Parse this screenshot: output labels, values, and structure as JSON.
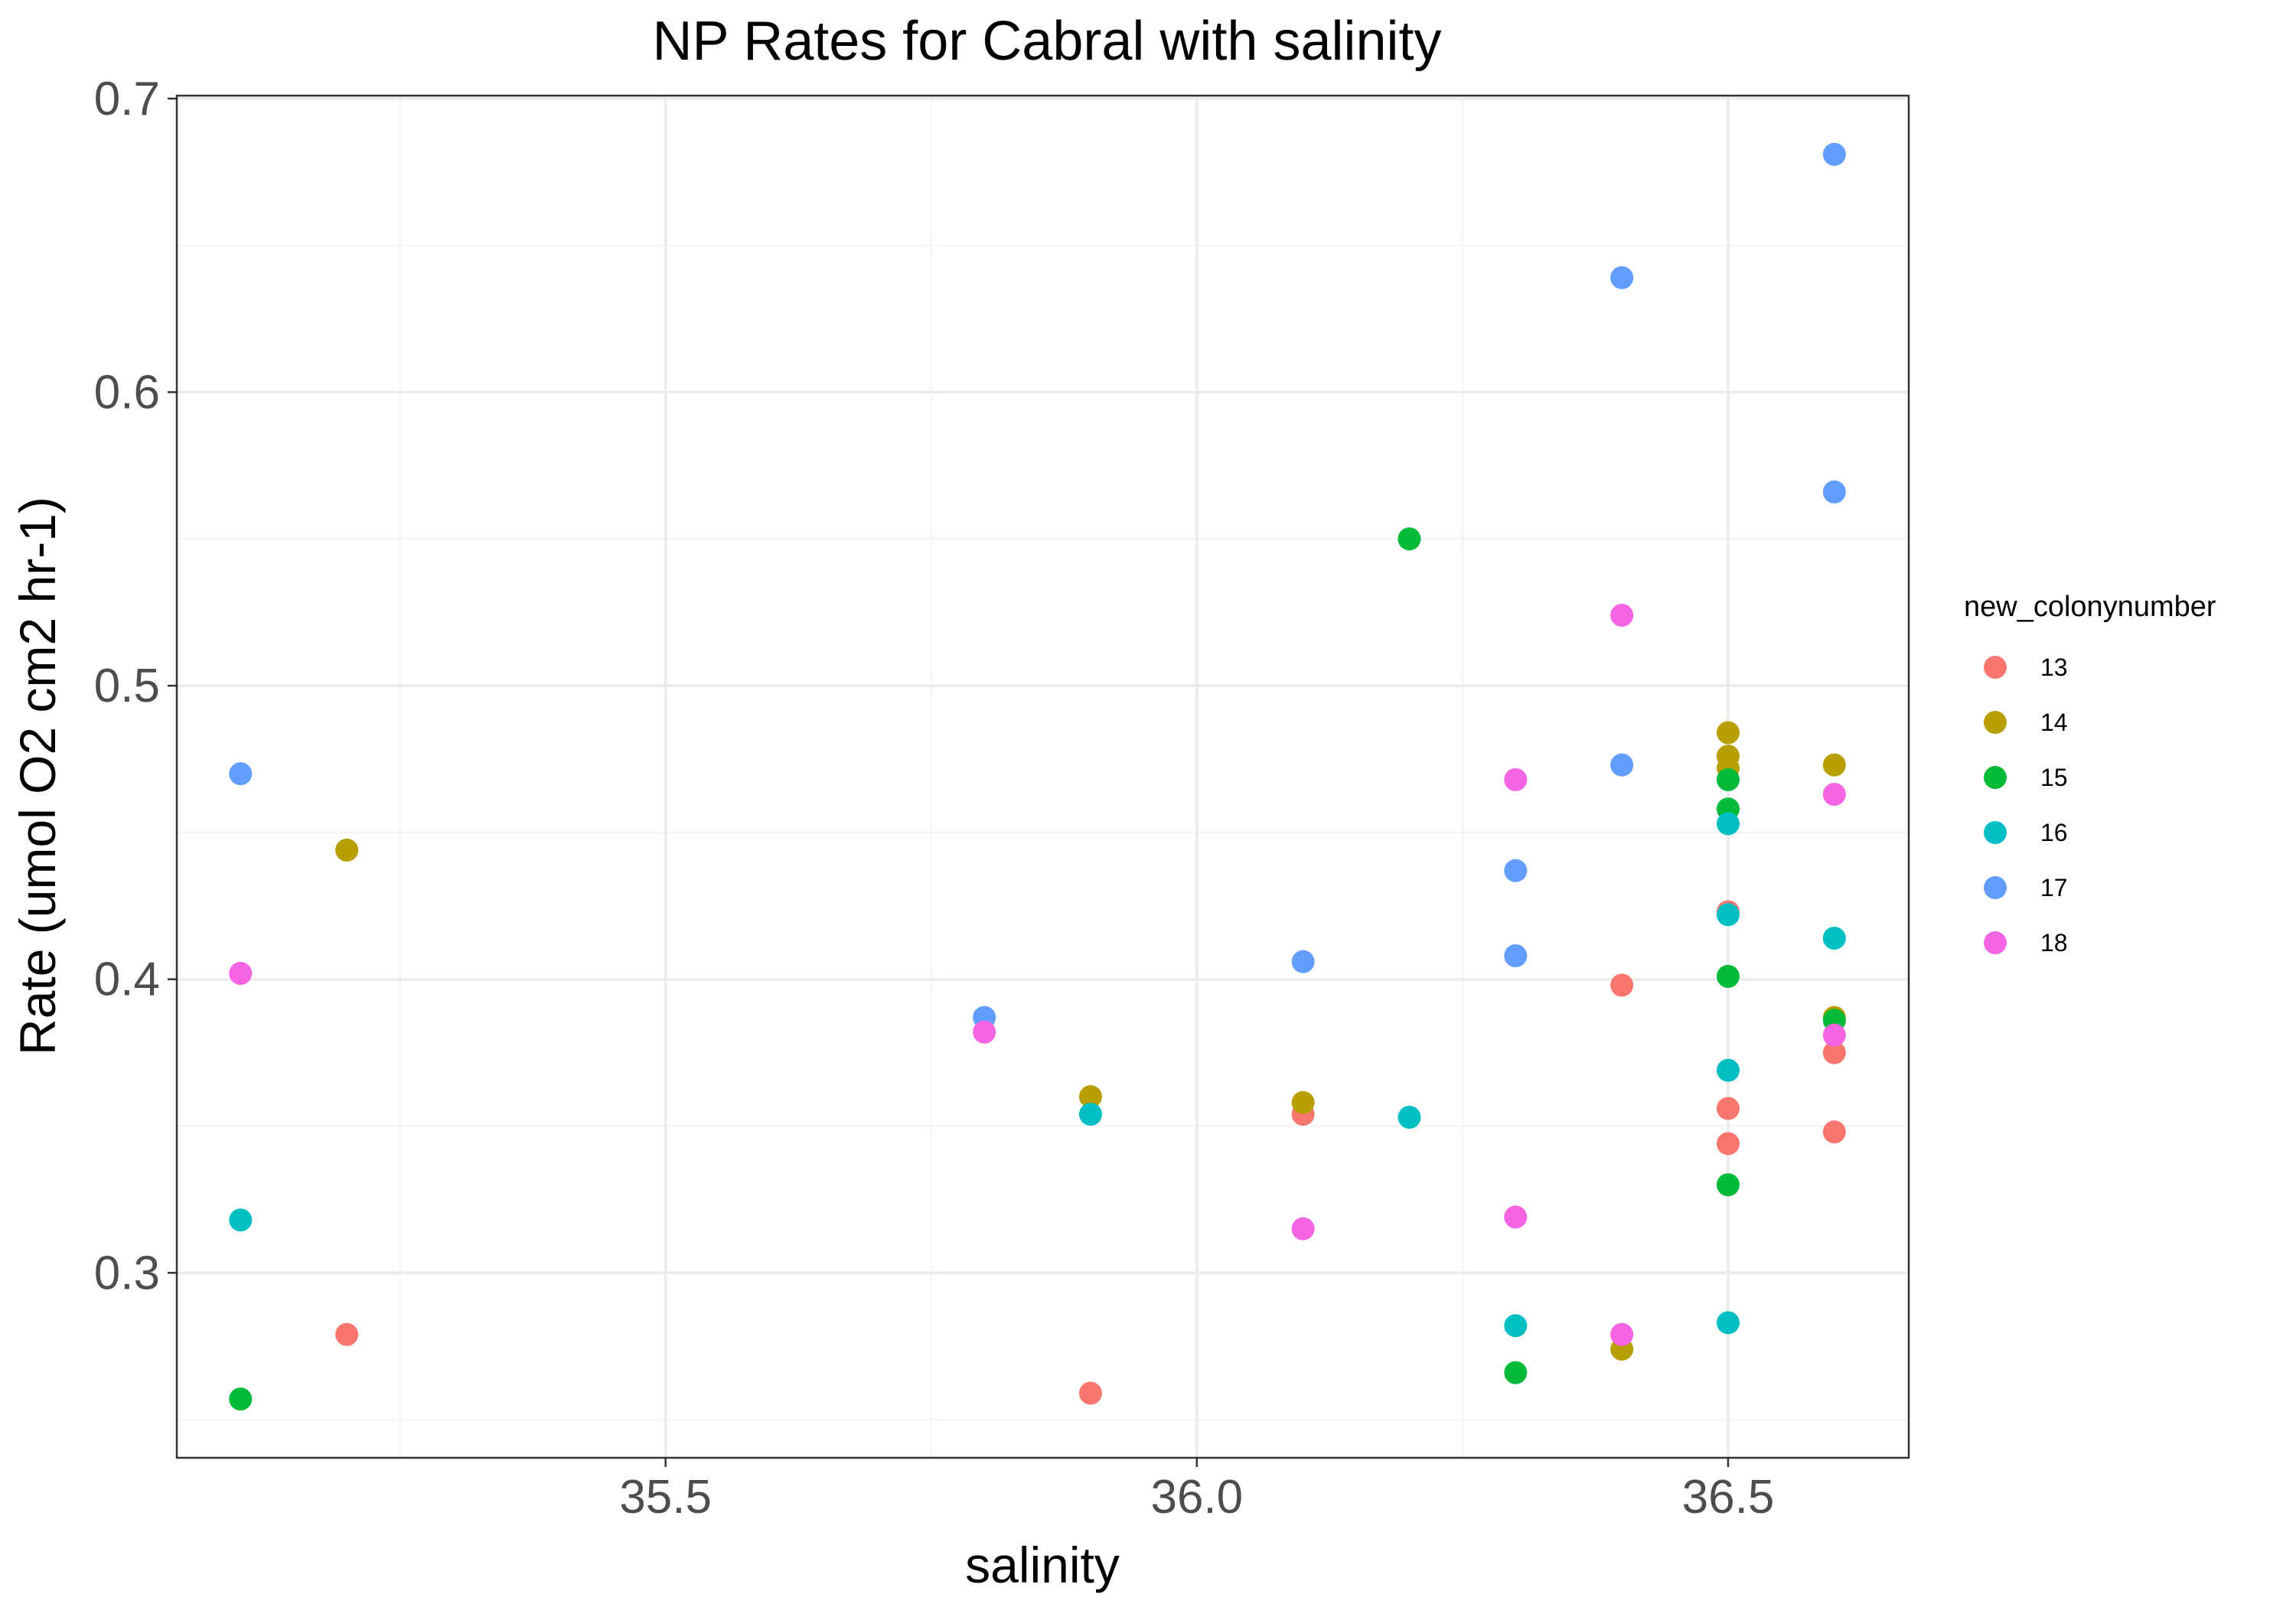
{
  "chart_data": {
    "type": "scatter",
    "title": "NP Rates for Cabral with salinity",
    "xlabel": "salinity",
    "ylabel": "Rate (umol O2 cm2 hr-1)",
    "xlim": [
      35.04,
      36.67
    ],
    "ylim": [
      0.237,
      0.701
    ],
    "x_ticks": [
      35.5,
      36.0,
      36.5
    ],
    "x_tick_labels": [
      "35.5",
      "36.0",
      "36.5"
    ],
    "y_ticks": [
      0.3,
      0.4,
      0.5,
      0.6,
      0.7
    ],
    "y_tick_labels": [
      "0.3",
      "0.4",
      "0.5",
      "0.6",
      "0.7"
    ],
    "grid": true,
    "legend": {
      "title": "new_colonynumber",
      "placement": "right"
    },
    "series": [
      {
        "name": "13",
        "color": "#F8766D",
        "points": [
          {
            "x": 35.2,
            "y": 0.279
          },
          {
            "x": 35.9,
            "y": 0.259
          },
          {
            "x": 36.1,
            "y": 0.354
          },
          {
            "x": 36.4,
            "y": 0.398
          },
          {
            "x": 36.5,
            "y": 0.423
          },
          {
            "x": 36.5,
            "y": 0.356
          },
          {
            "x": 36.5,
            "y": 0.344
          },
          {
            "x": 36.6,
            "y": 0.375
          },
          {
            "x": 36.6,
            "y": 0.348
          }
        ]
      },
      {
        "name": "14",
        "color": "#B79F00",
        "points": [
          {
            "x": 35.2,
            "y": 0.444
          },
          {
            "x": 35.9,
            "y": 0.36
          },
          {
            "x": 36.1,
            "y": 0.358
          },
          {
            "x": 36.4,
            "y": 0.274
          },
          {
            "x": 36.5,
            "y": 0.484
          },
          {
            "x": 36.5,
            "y": 0.476
          },
          {
            "x": 36.5,
            "y": 0.472
          },
          {
            "x": 36.6,
            "y": 0.473
          },
          {
            "x": 36.6,
            "y": 0.387
          }
        ]
      },
      {
        "name": "15",
        "color": "#00BA38",
        "points": [
          {
            "x": 35.1,
            "y": 0.257
          },
          {
            "x": 36.2,
            "y": 0.55
          },
          {
            "x": 36.3,
            "y": 0.266
          },
          {
            "x": 36.5,
            "y": 0.468
          },
          {
            "x": 36.5,
            "y": 0.458
          },
          {
            "x": 36.5,
            "y": 0.401
          },
          {
            "x": 36.5,
            "y": 0.33
          },
          {
            "x": 36.6,
            "y": 0.386
          }
        ]
      },
      {
        "name": "16",
        "color": "#00BFC4",
        "points": [
          {
            "x": 35.1,
            "y": 0.318
          },
          {
            "x": 35.9,
            "y": 0.354
          },
          {
            "x": 36.2,
            "y": 0.353
          },
          {
            "x": 36.3,
            "y": 0.282
          },
          {
            "x": 36.5,
            "y": 0.453
          },
          {
            "x": 36.5,
            "y": 0.422
          },
          {
            "x": 36.5,
            "y": 0.369
          },
          {
            "x": 36.5,
            "y": 0.283
          },
          {
            "x": 36.6,
            "y": 0.414
          }
        ]
      },
      {
        "name": "17",
        "color": "#619CFF",
        "points": [
          {
            "x": 35.1,
            "y": 0.47
          },
          {
            "x": 35.8,
            "y": 0.387
          },
          {
            "x": 36.1,
            "y": 0.406
          },
          {
            "x": 36.3,
            "y": 0.437
          },
          {
            "x": 36.3,
            "y": 0.408
          },
          {
            "x": 36.4,
            "y": 0.639
          },
          {
            "x": 36.4,
            "y": 0.473
          },
          {
            "x": 36.6,
            "y": 0.681
          },
          {
            "x": 36.6,
            "y": 0.566
          }
        ]
      },
      {
        "name": "18",
        "color": "#F564E3",
        "points": [
          {
            "x": 35.1,
            "y": 0.402
          },
          {
            "x": 35.8,
            "y": 0.382
          },
          {
            "x": 36.1,
            "y": 0.315
          },
          {
            "x": 36.3,
            "y": 0.468
          },
          {
            "x": 36.3,
            "y": 0.319
          },
          {
            "x": 36.4,
            "y": 0.524
          },
          {
            "x": 36.4,
            "y": 0.279
          },
          {
            "x": 36.6,
            "y": 0.463
          },
          {
            "x": 36.6,
            "y": 0.381
          }
        ]
      }
    ]
  }
}
